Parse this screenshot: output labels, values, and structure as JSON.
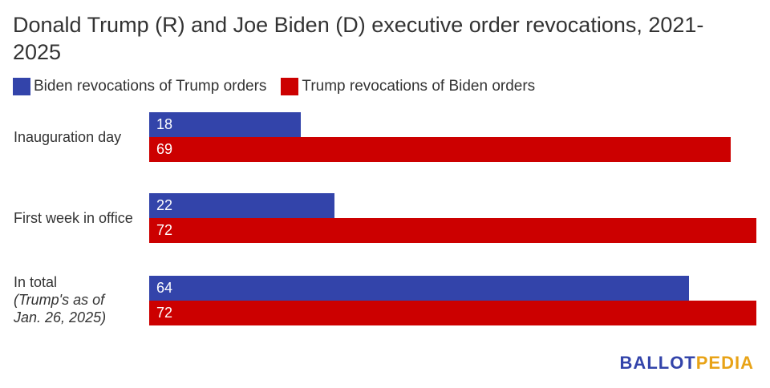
{
  "title": "Donald Trump (R) and Joe Biden (D) executive order revocations, 2021-2025",
  "legend": [
    {
      "label": "Biden revocations of Trump orders",
      "color": "#3344aa"
    },
    {
      "label": "Trump revocations of Biden orders",
      "color": "#cc0000"
    }
  ],
  "chart_data": {
    "type": "bar",
    "orientation": "horizontal",
    "title": "Donald Trump (R) and Joe Biden (D) executive order revocations, 2021-2025",
    "categories": [
      {
        "label": "Inauguration day",
        "note": ""
      },
      {
        "label": "First week in office",
        "note": ""
      },
      {
        "label": "In total",
        "note": "(Trump's as of\nJan. 26, 2025)"
      }
    ],
    "series": [
      {
        "name": "Biden revocations of Trump orders",
        "color": "#3344aa",
        "values": [
          18,
          22,
          64
        ]
      },
      {
        "name": "Trump revocations of Biden orders",
        "color": "#cc0000",
        "values": [
          69,
          72,
          72
        ]
      }
    ],
    "xlim": [
      0,
      72
    ],
    "grid": false,
    "legend_position": "top-left"
  },
  "logo": {
    "part1": "BALLOT",
    "part2": "PEDIA"
  }
}
